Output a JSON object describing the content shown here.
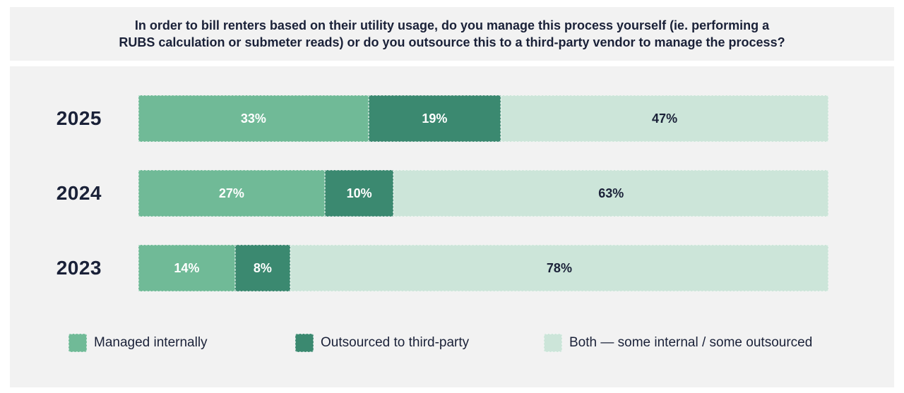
{
  "title": "In order to bill renters based on their utility usage, do you manage this process yourself (ie. performing a RUBS calculation or submeter reads) or do you outsource this to a third-party vendor to manage the process?",
  "colors": {
    "panel_background": "#f2f2f2",
    "page_background": "#ffffff",
    "text_navy": "#1a2138",
    "green_medium": "#70ba97",
    "green_dark": "#3b8970",
    "green_light": "#cce5d9"
  },
  "chart_data": {
    "type": "bar",
    "stacked": true,
    "orientation": "horizontal",
    "categories": [
      "2025",
      "2024",
      "2023"
    ],
    "series": [
      {
        "name": "Managed internally",
        "color": "#70ba97",
        "label_color": "#ffffff",
        "values": [
          33,
          27,
          14
        ]
      },
      {
        "name": "Outsourced to third-party",
        "color": "#3b8970",
        "label_color": "#ffffff",
        "values": [
          19,
          10,
          8
        ]
      },
      {
        "name": "Both — some internal / some outsourced",
        "color": "#cce5d9",
        "label_color": "#1a2138",
        "values": [
          47,
          63,
          78
        ]
      }
    ],
    "value_suffix": "%",
    "legend_position": "bottom",
    "grid": false,
    "xlim": [
      0,
      100
    ]
  },
  "legend": {
    "items": [
      {
        "label": "Managed internally",
        "color": "#70ba97"
      },
      {
        "label": "Outsourced to third-party",
        "color": "#3b8970"
      },
      {
        "label": "Both — some internal / some outsourced",
        "color": "#cce5d9"
      }
    ]
  }
}
